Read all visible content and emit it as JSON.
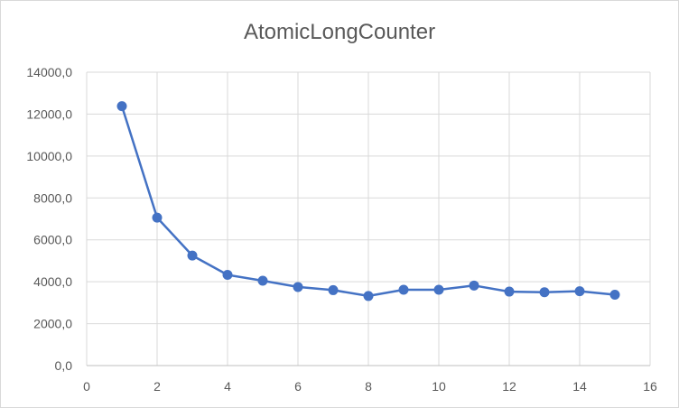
{
  "chart_data": {
    "type": "line",
    "title": "AtomicLongCounter",
    "xlabel": "",
    "ylabel": "",
    "xlim": [
      0,
      16
    ],
    "ylim": [
      0,
      14000
    ],
    "x_ticks": [
      0,
      2,
      4,
      6,
      8,
      10,
      12,
      14,
      16
    ],
    "y_ticks": [
      0,
      2000,
      4000,
      6000,
      8000,
      10000,
      12000,
      14000
    ],
    "y_tick_labels": [
      "0,0",
      "2000,0",
      "4000,0",
      "6000,0",
      "8000,0",
      "10000,0",
      "12000,0",
      "14000,0"
    ],
    "grid": true,
    "legend": "none",
    "series": [
      {
        "color": "#4472c4",
        "x": [
          1,
          2,
          3,
          4,
          5,
          6,
          7,
          8,
          9,
          10,
          11,
          12,
          13,
          14,
          15
        ],
        "y": [
          12380,
          7060,
          5250,
          4330,
          4050,
          3750,
          3600,
          3320,
          3620,
          3620,
          3820,
          3530,
          3500,
          3550,
          3380
        ]
      }
    ]
  }
}
